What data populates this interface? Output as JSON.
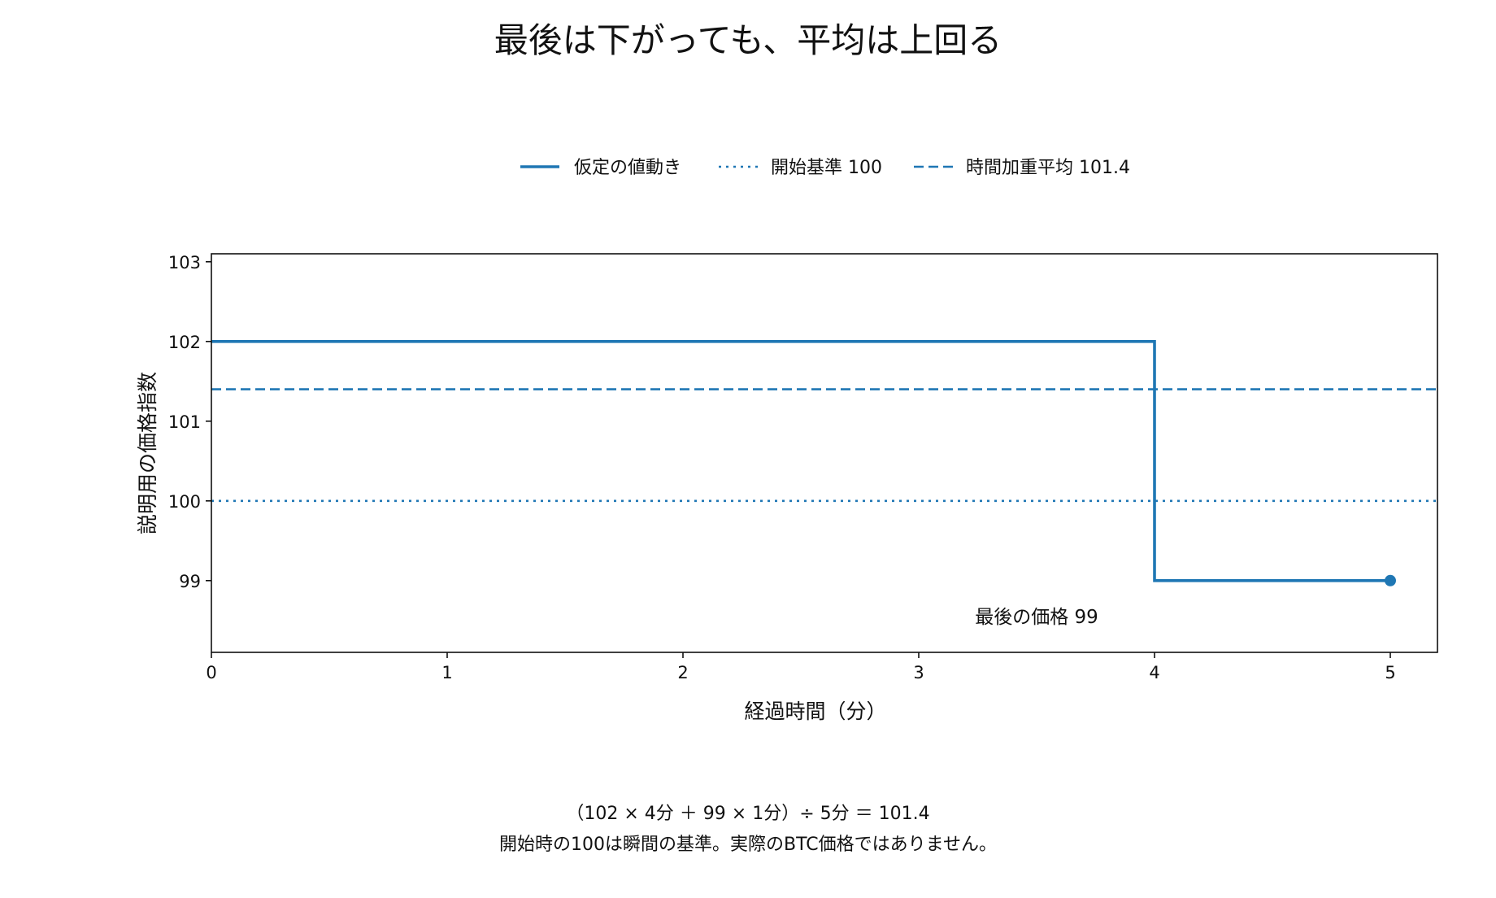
{
  "chart_data": {
    "type": "line",
    "title": "最後は下がっても、平均は上回る",
    "xlabel": "経過時間（分）",
    "ylabel": "説明用の価格指数",
    "xlim": [
      0,
      5.2
    ],
    "ylim": [
      98.1,
      103.1
    ],
    "x_ticks": [
      0,
      1,
      2,
      3,
      4,
      5
    ],
    "y_ticks": [
      99,
      100,
      101,
      102,
      103
    ],
    "grid": false,
    "legend_position": "top-center",
    "series": [
      {
        "name": "仮定の値動き",
        "style": "solid-step",
        "color": "#1f77b4",
        "points": [
          [
            0,
            102
          ],
          [
            4,
            102
          ],
          [
            4,
            99
          ],
          [
            5,
            99
          ]
        ],
        "end_marker": [
          5,
          99
        ]
      },
      {
        "name": "開始基準 100",
        "style": "dotted-horizontal",
        "color": "#1f77b4",
        "y": 100
      },
      {
        "name": "時間加重平均 101.4",
        "style": "dashed-horizontal",
        "color": "#1f77b4",
        "y": 101.4
      }
    ],
    "annotations": [
      {
        "text": "最後の価格 99",
        "x": 3.5,
        "y": 98.55
      }
    ],
    "footnotes": [
      "（102 × 4分 ＋ 99 × 1分）÷ 5分 ＝ 101.4",
      "開始時の100は瞬間の基準。実際のBTC価格ではありません。"
    ]
  }
}
